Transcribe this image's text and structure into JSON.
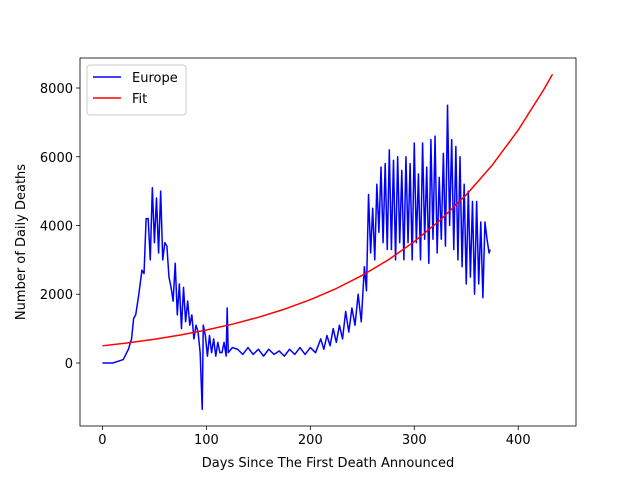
{
  "chart_data": {
    "type": "line",
    "xlabel": "Days Since The First Death Announced",
    "ylabel": "Number of Daily Deaths",
    "xlim": [
      -21.6,
      455.6
    ],
    "ylim": [
      -1833,
      8873
    ],
    "xticks": [
      0,
      100,
      200,
      300,
      400
    ],
    "yticks": [
      0,
      2000,
      4000,
      6000,
      8000
    ],
    "legend": "upper left",
    "series": [
      {
        "name": "Europe",
        "color": "#0000ff",
        "x": [
          0,
          5,
          10,
          15,
          20,
          25,
          28,
          30,
          32,
          35,
          38,
          40,
          42,
          44,
          46,
          48,
          50,
          52,
          54,
          56,
          58,
          60,
          62,
          64,
          66,
          68,
          70,
          72,
          74,
          76,
          78,
          80,
          82,
          84,
          86,
          88,
          90,
          92,
          94,
          96,
          97,
          99,
          101,
          103,
          105,
          107,
          109,
          111,
          113,
          115,
          117,
          119,
          120,
          121,
          125,
          130,
          135,
          140,
          145,
          150,
          155,
          160,
          165,
          170,
          175,
          180,
          185,
          190,
          195,
          200,
          205,
          210,
          213,
          216,
          219,
          222,
          225,
          228,
          231,
          234,
          237,
          240,
          243,
          246,
          249,
          252,
          254,
          256,
          258,
          260,
          262,
          264,
          266,
          268,
          270,
          272,
          274,
          276,
          278,
          280,
          282,
          284,
          286,
          288,
          290,
          292,
          294,
          296,
          298,
          300,
          302,
          304,
          306,
          308,
          310,
          312,
          314,
          316,
          318,
          320,
          322,
          324,
          326,
          328,
          330,
          332,
          334,
          336,
          338,
          340,
          342,
          344,
          346,
          348,
          350,
          352,
          354,
          356,
          358,
          360,
          362,
          364,
          366,
          368,
          370,
          372,
          373
        ],
        "values": [
          0,
          0,
          0,
          50,
          100,
          400,
          700,
          1300,
          1400,
          2000,
          2700,
          2600,
          4200,
          4200,
          3000,
          5100,
          3500,
          4800,
          3200,
          5000,
          3000,
          3500,
          3400,
          2500,
          2200,
          1800,
          2900,
          1400,
          2300,
          1000,
          2200,
          1200,
          1800,
          1100,
          1400,
          700,
          1100,
          900,
          300,
          -1350,
          1100,
          800,
          200,
          800,
          300,
          700,
          200,
          600,
          300,
          300,
          600,
          200,
          1600,
          300,
          450,
          400,
          250,
          450,
          250,
          400,
          200,
          400,
          250,
          350,
          200,
          400,
          250,
          450,
          250,
          450,
          300,
          700,
          400,
          800,
          500,
          1000,
          600,
          1100,
          700,
          1500,
          900,
          1600,
          1100,
          2000,
          1200,
          2800,
          2100,
          4900,
          3200,
          4500,
          3000,
          5200,
          3800,
          5700,
          3500,
          5800,
          3300,
          6200,
          3300,
          5900,
          3000,
          6000,
          3500,
          5600,
          3000,
          6000,
          3500,
          5800,
          3000,
          6400,
          3500,
          5500,
          3000,
          6400,
          3600,
          5700,
          2900,
          6500,
          3600,
          6600,
          3200,
          5400,
          3600,
          6100,
          3400,
          7500,
          4000,
          6500,
          3300,
          6300,
          3000,
          6000,
          2800,
          5200,
          2300,
          5000,
          2500,
          4700,
          2000,
          4700,
          2300,
          4100,
          1900,
          4100,
          3600,
          3200,
          3300
        ]
      },
      {
        "name": "Fit",
        "color": "#ff0000",
        "x": [
          0,
          25,
          50,
          75,
          100,
          125,
          150,
          175,
          200,
          225,
          250,
          275,
          300,
          325,
          350,
          375,
          400,
          425,
          433
        ],
        "values": [
          500,
          588,
          692,
          815,
          959,
          1129,
          1329,
          1564,
          1841,
          2167,
          2550,
          3001,
          3532,
          4157,
          4892,
          5758,
          6776,
          7975,
          8400
        ]
      }
    ]
  }
}
